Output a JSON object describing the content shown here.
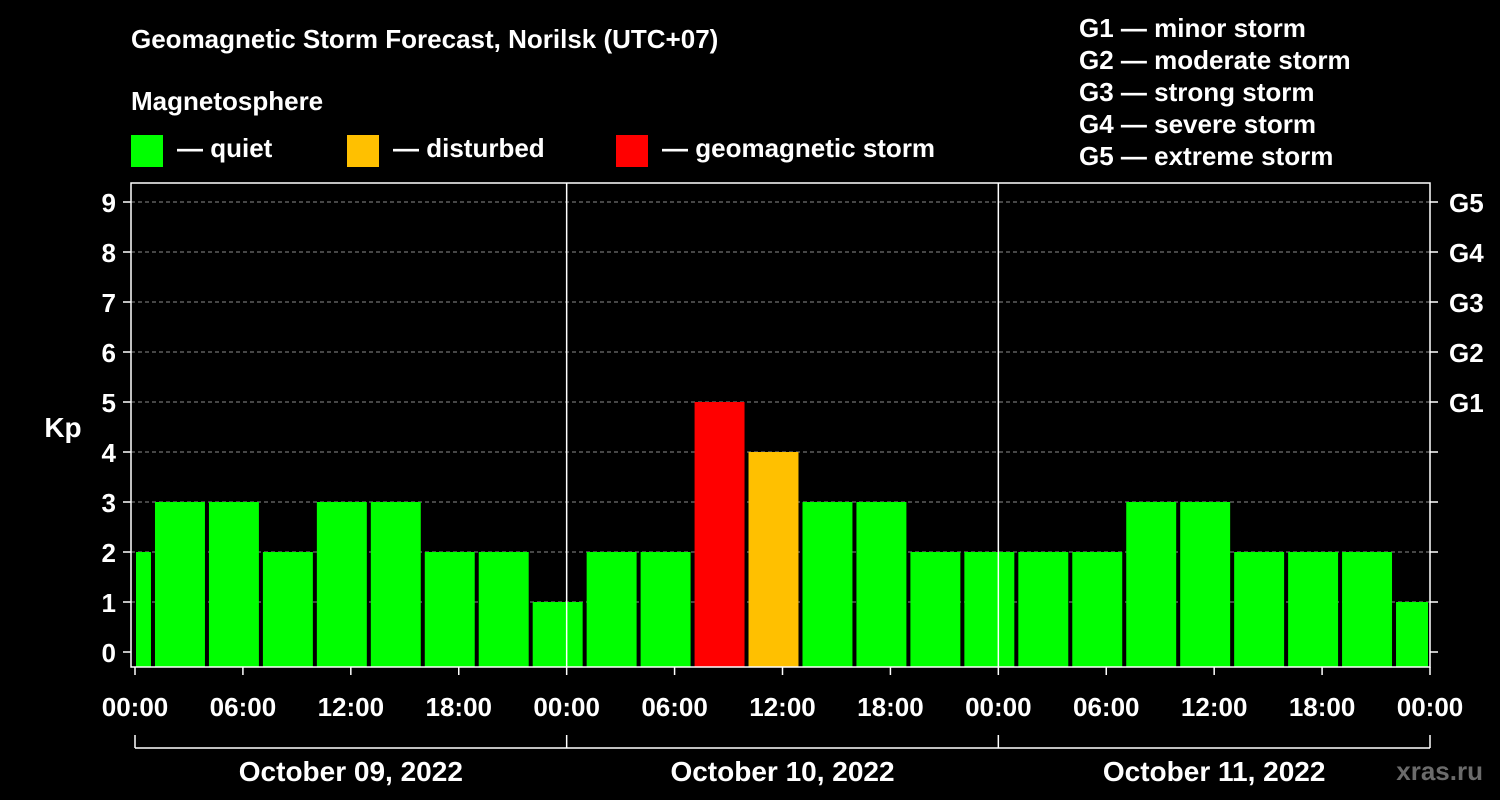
{
  "header": {
    "title": "Geomagnetic Storm Forecast, Norilsk (UTC+07)",
    "subtitle": "Magnetosphere"
  },
  "legend": [
    {
      "label": "— quiet",
      "color": "#00ff00"
    },
    {
      "label": "— disturbed",
      "color": "#ffc000"
    },
    {
      "label": "— geomagnetic storm",
      "color": "#ff0000"
    }
  ],
  "storm_scale": [
    "G1 — minor storm",
    "G2 — moderate storm",
    "G3 — strong storm",
    "G4 — severe storm",
    "G5 — extreme storm"
  ],
  "watermark": "xras.ru",
  "chart_data": {
    "type": "bar",
    "title": "Geomagnetic Storm Forecast, Norilsk (UTC+07)",
    "ylabel": "Kp",
    "xlabel": "",
    "ylim": [
      0,
      9
    ],
    "yticks": [
      0,
      1,
      2,
      3,
      4,
      5,
      6,
      7,
      8,
      9
    ],
    "right_axis": [
      {
        "kp": 5,
        "label": "G1"
      },
      {
        "kp": 6,
        "label": "G2"
      },
      {
        "kp": 7,
        "label": "G3"
      },
      {
        "kp": 8,
        "label": "G4"
      },
      {
        "kp": 9,
        "label": "G5"
      }
    ],
    "x_range_hours": [
      0,
      72
    ],
    "xtick_hours": [
      0,
      6,
      12,
      18,
      24,
      30,
      36,
      42,
      48,
      54,
      60,
      66,
      72
    ],
    "xtick_labels": [
      "00:00",
      "06:00",
      "12:00",
      "18:00",
      "00:00",
      "06:00",
      "12:00",
      "18:00",
      "00:00",
      "06:00",
      "12:00",
      "18:00",
      "00:00"
    ],
    "day_boundaries_hours": [
      24,
      48
    ],
    "days": [
      {
        "label": "October 09, 2022",
        "start_hour": 0,
        "end_hour": 24
      },
      {
        "label": "October 10, 2022",
        "start_hour": 24,
        "end_hour": 48
      },
      {
        "label": "October 11, 2022",
        "start_hour": 48,
        "end_hour": 72
      }
    ],
    "bar_interval_hours": 3,
    "first_bar_start_hour": -2,
    "values": [
      2,
      3,
      3,
      2,
      3,
      3,
      2,
      2,
      1,
      2,
      2,
      5,
      4,
      3,
      3,
      2,
      2,
      2,
      2,
      3,
      3,
      2,
      2,
      2,
      1
    ],
    "colors": {
      "quiet": "#00ff00",
      "disturbed": "#ffc000",
      "storm": "#ff0000"
    },
    "thresholds": {
      "disturbed": 4,
      "storm": 5
    }
  }
}
